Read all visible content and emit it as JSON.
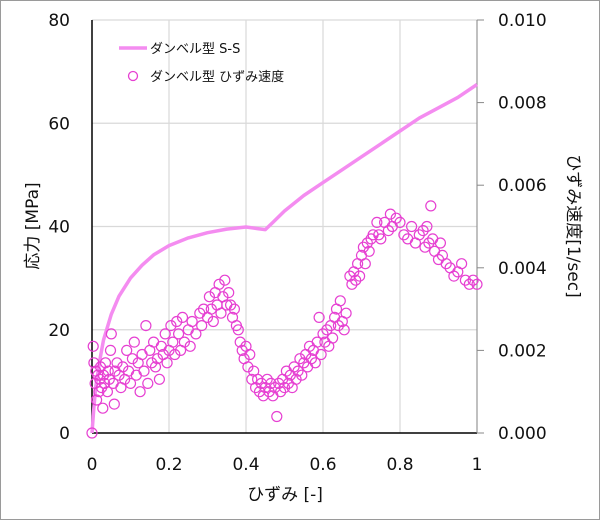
{
  "chart_data": {
    "type": "line+scatter",
    "title": "",
    "xlabel": "ひずみ [-]",
    "ylabel": "応力 [MPa]",
    "y2label": "ひずみ速度[1/sec]",
    "xlim": [
      0,
      1
    ],
    "ylim": [
      0,
      80
    ],
    "y2lim": [
      0,
      0.01
    ],
    "grid": true,
    "legend_position": "upper-left",
    "x_ticks": [
      "0",
      "0.2",
      "0.4",
      "0.6",
      "0.8",
      "1"
    ],
    "y_ticks": [
      "0",
      "20",
      "40",
      "60",
      "80"
    ],
    "y2_ticks": [
      "0.000",
      "0.002",
      "0.004",
      "0.006",
      "0.008",
      "0.010"
    ],
    "colors": {
      "line": "#f48cf0",
      "marker": "#e640d2",
      "grid": "#d9d9d9",
      "axis": "#000000"
    },
    "series": [
      {
        "name": "ダンベル型 S-S",
        "kind": "line",
        "axis": "left",
        "x": [
          0,
          0.005,
          0.01,
          0.02,
          0.03,
          0.05,
          0.07,
          0.1,
          0.13,
          0.16,
          0.2,
          0.25,
          0.3,
          0.35,
          0.4,
          0.43,
          0.45,
          0.47,
          0.5,
          0.55,
          0.6,
          0.65,
          0.7,
          0.75,
          0.8,
          0.85,
          0.9,
          0.95,
          1.0
        ],
        "values": [
          0,
          5,
          9,
          14,
          18,
          23,
          26.5,
          30,
          32.5,
          34.5,
          36.3,
          37.8,
          38.8,
          39.5,
          39.9,
          39.6,
          39.4,
          40.8,
          43,
          46,
          48.5,
          51,
          53.5,
          56,
          58.5,
          61,
          63,
          65,
          67.5
        ]
      },
      {
        "name": "ダンベル型 ひずみ速度",
        "kind": "scatter",
        "axis": "right",
        "points": [
          [
            0.0,
            0.0
          ],
          [
            0.003,
            0.0021
          ],
          [
            0.005,
            0.0017
          ],
          [
            0.008,
            0.0012
          ],
          [
            0.01,
            0.0015
          ],
          [
            0.012,
            0.0008
          ],
          [
            0.015,
            0.0014
          ],
          [
            0.018,
            0.001
          ],
          [
            0.02,
            0.0013
          ],
          [
            0.022,
            0.0016
          ],
          [
            0.025,
            0.0011
          ],
          [
            0.028,
            0.0006
          ],
          [
            0.03,
            0.0014
          ],
          [
            0.033,
            0.0012
          ],
          [
            0.035,
            0.0017
          ],
          [
            0.04,
            0.001
          ],
          [
            0.042,
            0.0015
          ],
          [
            0.045,
            0.0013
          ],
          [
            0.048,
            0.002
          ],
          [
            0.05,
            0.0024
          ],
          [
            0.055,
            0.0012
          ],
          [
            0.058,
            0.0007
          ],
          [
            0.06,
            0.0015
          ],
          [
            0.065,
            0.0017
          ],
          [
            0.07,
            0.0014
          ],
          [
            0.075,
            0.0011
          ],
          [
            0.08,
            0.0016
          ],
          [
            0.085,
            0.0013
          ],
          [
            0.09,
            0.002
          ],
          [
            0.095,
            0.0015
          ],
          [
            0.1,
            0.0012
          ],
          [
            0.105,
            0.0018
          ],
          [
            0.11,
            0.0022
          ],
          [
            0.115,
            0.0014
          ],
          [
            0.12,
            0.0017
          ],
          [
            0.125,
            0.001
          ],
          [
            0.13,
            0.0019
          ],
          [
            0.135,
            0.0015
          ],
          [
            0.14,
            0.0026
          ],
          [
            0.145,
            0.0012
          ],
          [
            0.15,
            0.002
          ],
          [
            0.155,
            0.0017
          ],
          [
            0.16,
            0.0022
          ],
          [
            0.165,
            0.0016
          ],
          [
            0.17,
            0.0018
          ],
          [
            0.175,
            0.0013
          ],
          [
            0.18,
            0.0021
          ],
          [
            0.185,
            0.0019
          ],
          [
            0.19,
            0.0024
          ],
          [
            0.195,
            0.0017
          ],
          [
            0.2,
            0.002
          ],
          [
            0.205,
            0.0026
          ],
          [
            0.21,
            0.0022
          ],
          [
            0.215,
            0.0019
          ],
          [
            0.22,
            0.0027
          ],
          [
            0.225,
            0.0024
          ],
          [
            0.23,
            0.002
          ],
          [
            0.235,
            0.0028
          ],
          [
            0.24,
            0.0022
          ],
          [
            0.25,
            0.0025
          ],
          [
            0.255,
            0.0021
          ],
          [
            0.26,
            0.0027
          ],
          [
            0.27,
            0.0024
          ],
          [
            0.28,
            0.0029
          ],
          [
            0.285,
            0.0026
          ],
          [
            0.29,
            0.003
          ],
          [
            0.3,
            0.0028
          ],
          [
            0.305,
            0.0033
          ],
          [
            0.31,
            0.003
          ],
          [
            0.315,
            0.0027
          ],
          [
            0.32,
            0.0034
          ],
          [
            0.325,
            0.0031
          ],
          [
            0.33,
            0.0036
          ],
          [
            0.335,
            0.0029
          ],
          [
            0.34,
            0.0033
          ],
          [
            0.345,
            0.0037
          ],
          [
            0.35,
            0.0031
          ],
          [
            0.355,
            0.0034
          ],
          [
            0.36,
            0.0031
          ],
          [
            0.365,
            0.0028
          ],
          [
            0.37,
            0.003
          ],
          [
            0.375,
            0.0026
          ],
          [
            0.38,
            0.0025
          ],
          [
            0.385,
            0.0022
          ],
          [
            0.39,
            0.002
          ],
          [
            0.395,
            0.0018
          ],
          [
            0.4,
            0.0021
          ],
          [
            0.405,
            0.0016
          ],
          [
            0.41,
            0.0019
          ],
          [
            0.415,
            0.0013
          ],
          [
            0.42,
            0.0015
          ],
          [
            0.425,
            0.0011
          ],
          [
            0.43,
            0.0013
          ],
          [
            0.435,
            0.001
          ],
          [
            0.44,
            0.0012
          ],
          [
            0.445,
            0.0009
          ],
          [
            0.45,
            0.0011
          ],
          [
            0.455,
            0.0013
          ],
          [
            0.46,
            0.001
          ],
          [
            0.465,
            0.0012
          ],
          [
            0.47,
            0.0009
          ],
          [
            0.475,
            0.0011
          ],
          [
            0.48,
            0.0004
          ],
          [
            0.485,
            0.0012
          ],
          [
            0.49,
            0.001
          ],
          [
            0.495,
            0.0013
          ],
          [
            0.5,
            0.0011
          ],
          [
            0.505,
            0.0015
          ],
          [
            0.51,
            0.0012
          ],
          [
            0.515,
            0.0014
          ],
          [
            0.52,
            0.0011
          ],
          [
            0.525,
            0.0016
          ],
          [
            0.53,
            0.0013
          ],
          [
            0.535,
            0.0015
          ],
          [
            0.54,
            0.0018
          ],
          [
            0.545,
            0.0014
          ],
          [
            0.55,
            0.0017
          ],
          [
            0.555,
            0.0019
          ],
          [
            0.56,
            0.0016
          ],
          [
            0.565,
            0.0021
          ],
          [
            0.57,
            0.0018
          ],
          [
            0.575,
            0.002
          ],
          [
            0.58,
            0.0017
          ],
          [
            0.585,
            0.0022
          ],
          [
            0.59,
            0.0028
          ],
          [
            0.595,
            0.0019
          ],
          [
            0.6,
            0.0024
          ],
          [
            0.605,
            0.0022
          ],
          [
            0.61,
            0.0025
          ],
          [
            0.615,
            0.0021
          ],
          [
            0.62,
            0.0026
          ],
          [
            0.625,
            0.0023
          ],
          [
            0.63,
            0.0028
          ],
          [
            0.635,
            0.003
          ],
          [
            0.64,
            0.0026
          ],
          [
            0.645,
            0.0032
          ],
          [
            0.65,
            0.0027
          ],
          [
            0.655,
            0.0025
          ],
          [
            0.66,
            0.0029
          ],
          [
            0.67,
            0.0038
          ],
          [
            0.675,
            0.0036
          ],
          [
            0.68,
            0.0039
          ],
          [
            0.685,
            0.0037
          ],
          [
            0.69,
            0.0041
          ],
          [
            0.695,
            0.0038
          ],
          [
            0.7,
            0.0043
          ],
          [
            0.705,
            0.0045
          ],
          [
            0.71,
            0.0041
          ],
          [
            0.715,
            0.0046
          ],
          [
            0.72,
            0.0044
          ],
          [
            0.725,
            0.0047
          ],
          [
            0.73,
            0.0048
          ],
          [
            0.74,
            0.0051
          ],
          [
            0.745,
            0.0048
          ],
          [
            0.75,
            0.0047
          ],
          [
            0.76,
            0.0051
          ],
          [
            0.77,
            0.0049
          ],
          [
            0.775,
            0.0053
          ],
          [
            0.78,
            0.005
          ],
          [
            0.79,
            0.0052
          ],
          [
            0.8,
            0.0051
          ],
          [
            0.81,
            0.0048
          ],
          [
            0.82,
            0.0047
          ],
          [
            0.83,
            0.005
          ],
          [
            0.84,
            0.0046
          ],
          [
            0.85,
            0.0048
          ],
          [
            0.86,
            0.0049
          ],
          [
            0.865,
            0.0045
          ],
          [
            0.87,
            0.005
          ],
          [
            0.875,
            0.0046
          ],
          [
            0.88,
            0.0055
          ],
          [
            0.885,
            0.0047
          ],
          [
            0.89,
            0.0044
          ],
          [
            0.9,
            0.0042
          ],
          [
            0.905,
            0.0046
          ],
          [
            0.91,
            0.0043
          ],
          [
            0.92,
            0.0041
          ],
          [
            0.93,
            0.004
          ],
          [
            0.94,
            0.0038
          ],
          [
            0.95,
            0.0039
          ],
          [
            0.96,
            0.0041
          ],
          [
            0.97,
            0.0037
          ],
          [
            0.98,
            0.0036
          ],
          [
            0.99,
            0.0037
          ],
          [
            1.0,
            0.0036
          ]
        ]
      }
    ]
  },
  "legend": {
    "line_label": "ダンベル型 S-S",
    "marker_label": "ダンベル型 ひずみ速度"
  },
  "axes": {
    "x_title": "ひずみ [-]",
    "y_title": "応力 [MPa]",
    "y2_title": "ひずみ速度[1/sec]"
  }
}
